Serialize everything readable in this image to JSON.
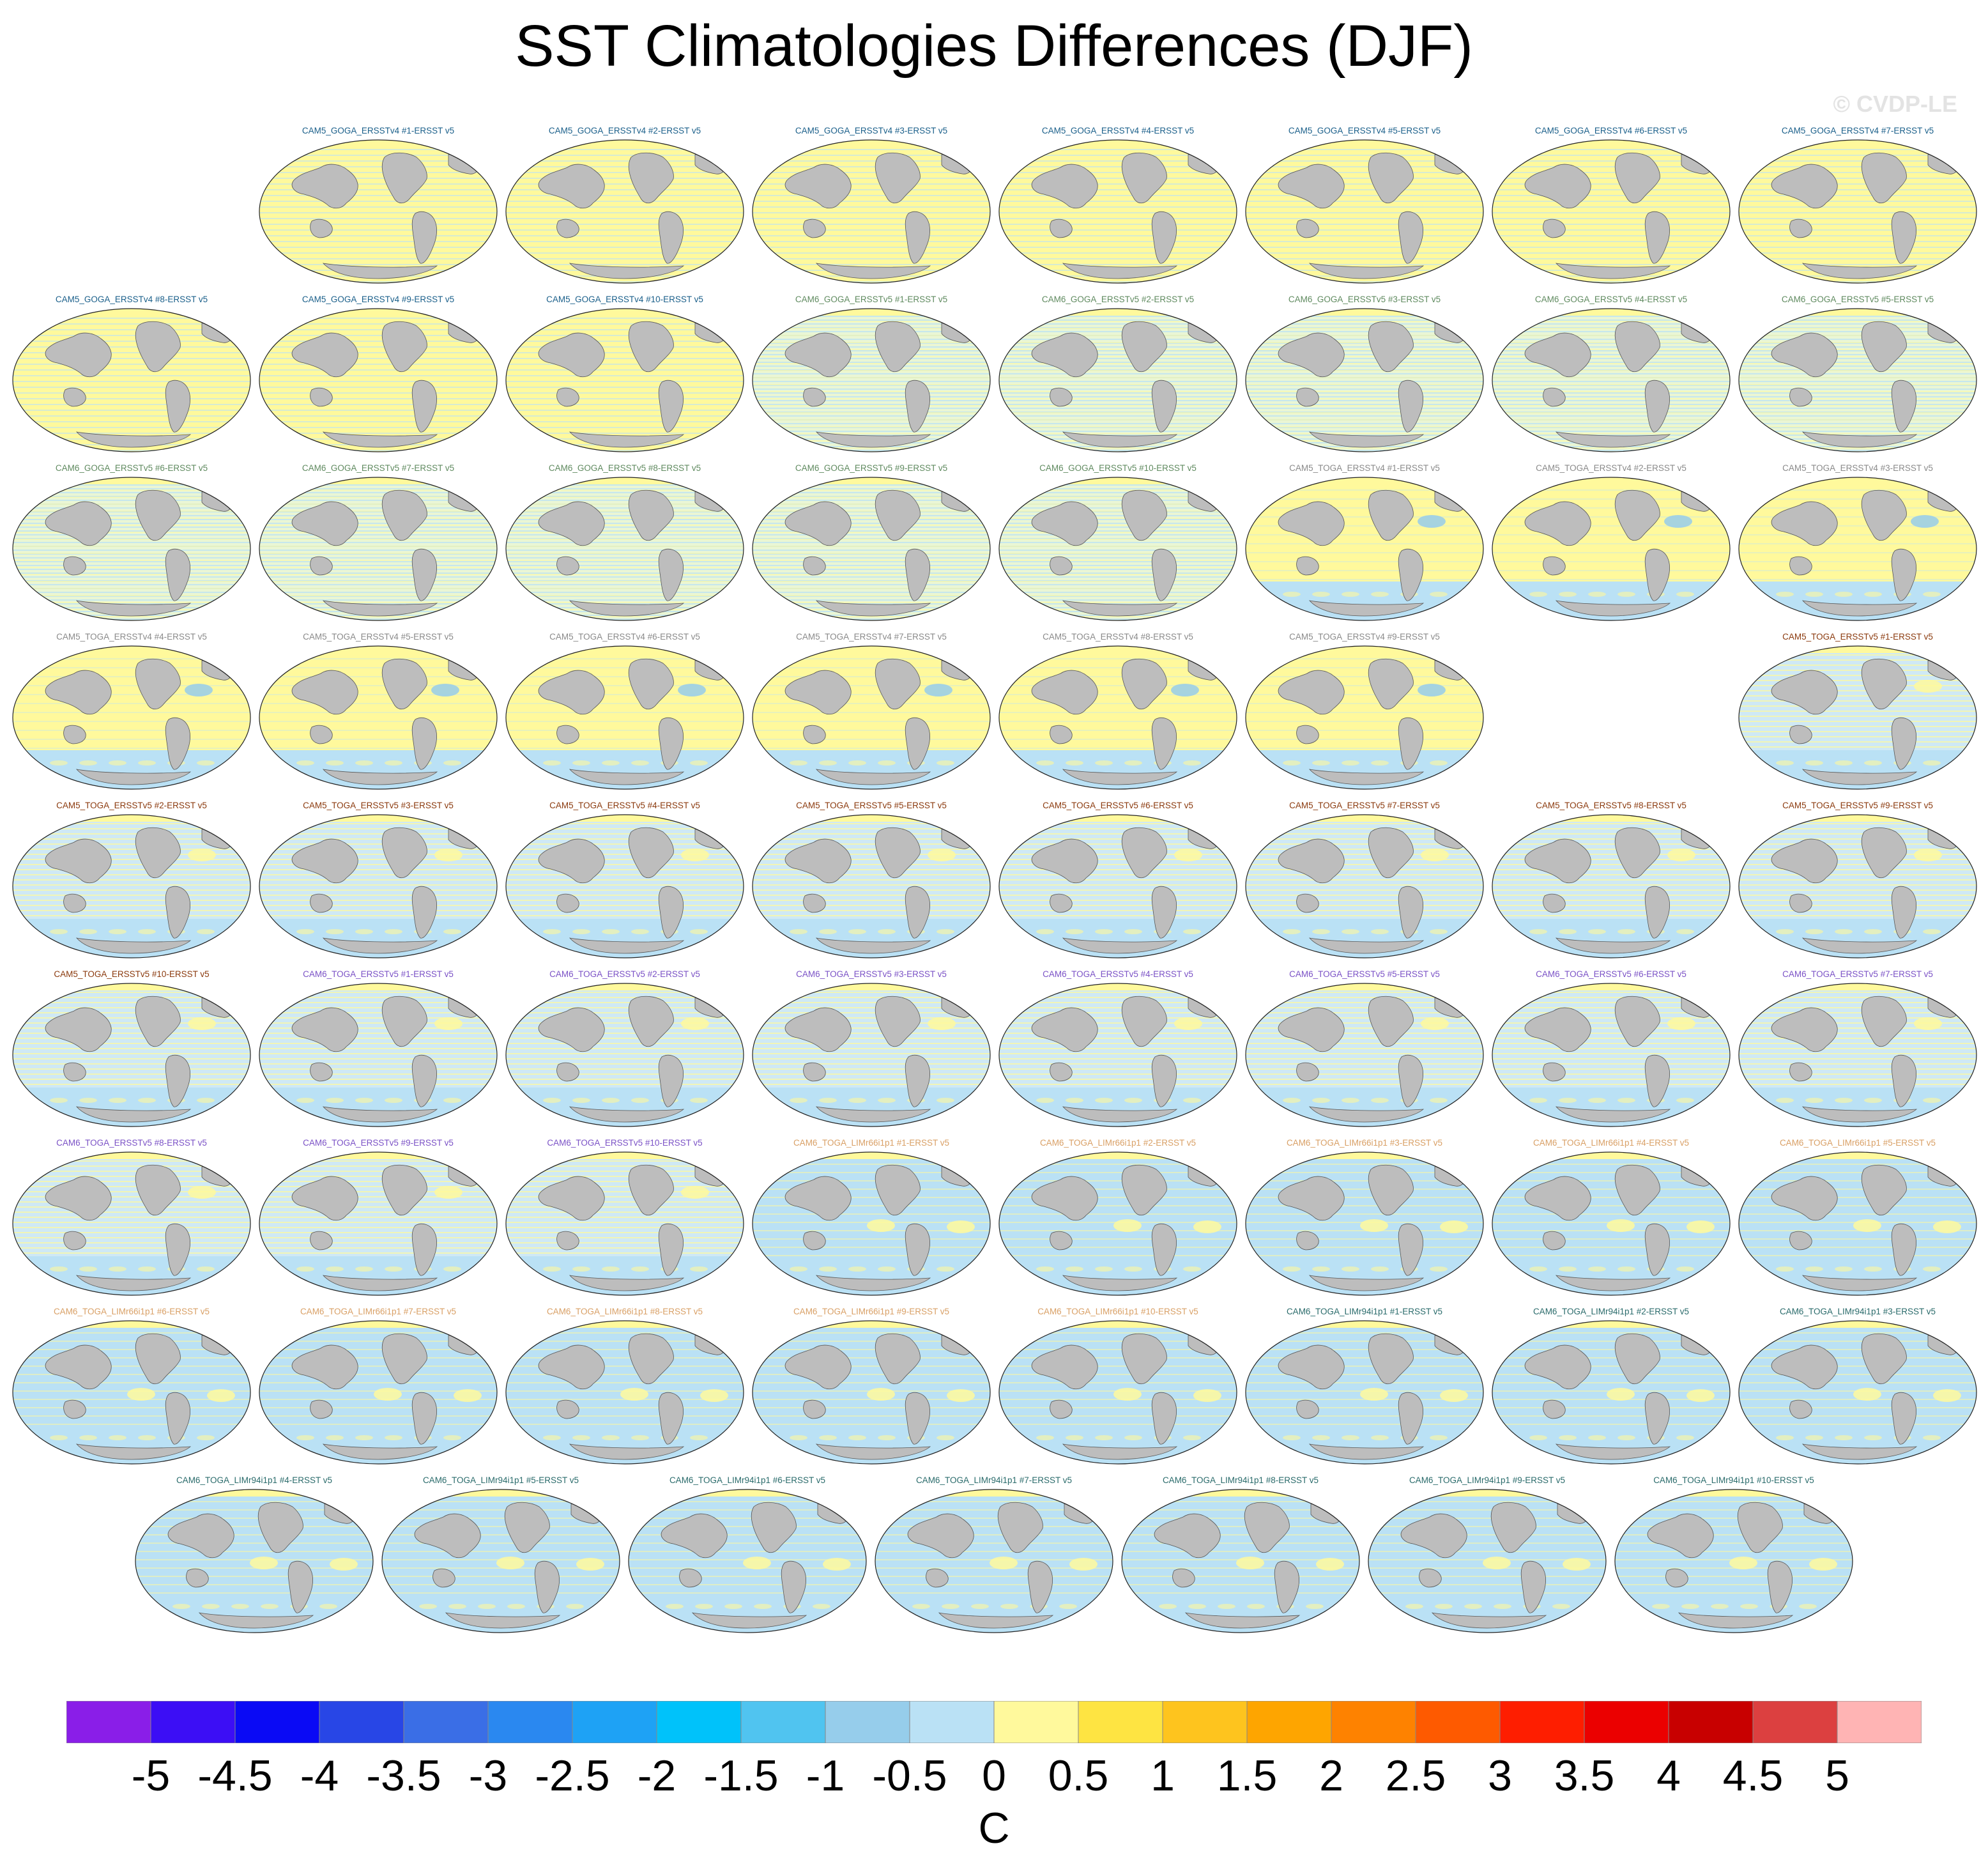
{
  "title": "SST Climatologies Differences (DJF)",
  "watermark": "© CVDP-LE",
  "chart_data": {
    "type": "heatmap",
    "title": "SST Climatologies Differences (DJF)",
    "panel_layout_rows": [
      7,
      8,
      8,
      7,
      8,
      8,
      8,
      8,
      7
    ],
    "panels": [
      {
        "label": "CAM5_GOGA_ERSSTv4 #1-ERSST v5",
        "row": 0,
        "col": 1,
        "label_color": "#1a5f8a",
        "pattern": "warm"
      },
      {
        "label": "CAM5_GOGA_ERSSTv4 #2-ERSST v5",
        "row": 0,
        "col": 2,
        "label_color": "#1a5f8a",
        "pattern": "warm"
      },
      {
        "label": "CAM5_GOGA_ERSSTv4 #3-ERSST v5",
        "row": 0,
        "col": 3,
        "label_color": "#1a5f8a",
        "pattern": "warm"
      },
      {
        "label": "CAM5_GOGA_ERSSTv4 #4-ERSST v5",
        "row": 0,
        "col": 4,
        "label_color": "#1a5f8a",
        "pattern": "warm"
      },
      {
        "label": "CAM5_GOGA_ERSSTv4 #5-ERSST v5",
        "row": 0,
        "col": 5,
        "label_color": "#1a5f8a",
        "pattern": "warm"
      },
      {
        "label": "CAM5_GOGA_ERSSTv4 #6-ERSST v5",
        "row": 0,
        "col": 6,
        "label_color": "#1a5f8a",
        "pattern": "warm"
      },
      {
        "label": "CAM5_GOGA_ERSSTv4 #7-ERSST v5",
        "row": 0,
        "col": 7,
        "label_color": "#1a5f8a",
        "pattern": "warm"
      },
      {
        "label": "CAM5_GOGA_ERSSTv4 #8-ERSST v5",
        "row": 1,
        "col": 0,
        "label_color": "#1a5f8a",
        "pattern": "warm"
      },
      {
        "label": "CAM5_GOGA_ERSSTv4 #9-ERSST v5",
        "row": 1,
        "col": 1,
        "label_color": "#1a5f8a",
        "pattern": "warm"
      },
      {
        "label": "CAM5_GOGA_ERSSTv4 #10-ERSST v5",
        "row": 1,
        "col": 2,
        "label_color": "#1a5f8a",
        "pattern": "warm"
      },
      {
        "label": "CAM6_GOGA_ERSSTv5 #1-ERSST v5",
        "row": 1,
        "col": 3,
        "label_color": "#5f8a5f",
        "pattern": "mixed"
      },
      {
        "label": "CAM6_GOGA_ERSSTv5 #2-ERSST v5",
        "row": 1,
        "col": 4,
        "label_color": "#5f8a5f",
        "pattern": "mixed"
      },
      {
        "label": "CAM6_GOGA_ERSSTv5 #3-ERSST v5",
        "row": 1,
        "col": 5,
        "label_color": "#5f8a5f",
        "pattern": "mixed"
      },
      {
        "label": "CAM6_GOGA_ERSSTv5 #4-ERSST v5",
        "row": 1,
        "col": 6,
        "label_color": "#5f8a5f",
        "pattern": "mixed"
      },
      {
        "label": "CAM6_GOGA_ERSSTv5 #5-ERSST v5",
        "row": 1,
        "col": 7,
        "label_color": "#5f8a5f",
        "pattern": "mixed"
      },
      {
        "label": "CAM6_GOGA_ERSSTv5 #6-ERSST v5",
        "row": 2,
        "col": 0,
        "label_color": "#5f8a5f",
        "pattern": "mixed"
      },
      {
        "label": "CAM6_GOGA_ERSSTv5 #7-ERSST v5",
        "row": 2,
        "col": 1,
        "label_color": "#5f8a5f",
        "pattern": "mixed"
      },
      {
        "label": "CAM6_GOGA_ERSSTv5 #8-ERSST v5",
        "row": 2,
        "col": 2,
        "label_color": "#5f8a5f",
        "pattern": "mixed"
      },
      {
        "label": "CAM6_GOGA_ERSSTv5 #9-ERSST v5",
        "row": 2,
        "col": 3,
        "label_color": "#5f8a5f",
        "pattern": "mixed"
      },
      {
        "label": "CAM6_GOGA_ERSSTv5 #10-ERSST v5",
        "row": 2,
        "col": 4,
        "label_color": "#5f8a5f",
        "pattern": "mixed"
      },
      {
        "label": "CAM5_TOGA_ERSSTv4 #1-ERSST v5",
        "row": 2,
        "col": 5,
        "label_color": "#8a8a8a",
        "pattern": "toga4"
      },
      {
        "label": "CAM5_TOGA_ERSSTv4 #2-ERSST v5",
        "row": 2,
        "col": 6,
        "label_color": "#8a8a8a",
        "pattern": "toga4"
      },
      {
        "label": "CAM5_TOGA_ERSSTv4 #3-ERSST v5",
        "row": 2,
        "col": 7,
        "label_color": "#8a8a8a",
        "pattern": "toga4"
      },
      {
        "label": "CAM5_TOGA_ERSSTv4 #4-ERSST v5",
        "row": 3,
        "col": 0,
        "label_color": "#8a8a8a",
        "pattern": "toga4"
      },
      {
        "label": "CAM5_TOGA_ERSSTv4 #5-ERSST v5",
        "row": 3,
        "col": 1,
        "label_color": "#8a8a8a",
        "pattern": "toga4"
      },
      {
        "label": "CAM5_TOGA_ERSSTv4 #6-ERSST v5",
        "row": 3,
        "col": 2,
        "label_color": "#8a8a8a",
        "pattern": "toga4"
      },
      {
        "label": "CAM5_TOGA_ERSSTv4 #7-ERSST v5",
        "row": 3,
        "col": 3,
        "label_color": "#8a8a8a",
        "pattern": "toga4"
      },
      {
        "label": "CAM5_TOGA_ERSSTv4 #8-ERSST v5",
        "row": 3,
        "col": 4,
        "label_color": "#8a8a8a",
        "pattern": "toga4"
      },
      {
        "label": "CAM5_TOGA_ERSSTv4 #9-ERSST v5",
        "row": 3,
        "col": 5,
        "label_color": "#8a8a8a",
        "pattern": "toga4"
      },
      {
        "label": "CAM5_TOGA_ERSSTv5 #1-ERSST v5",
        "row": 3,
        "col": 7,
        "label_color": "#8b3a0e",
        "pattern": "cool"
      },
      {
        "label": "CAM5_TOGA_ERSSTv5 #2-ERSST v5",
        "row": 4,
        "col": 0,
        "label_color": "#8b3a0e",
        "pattern": "cool"
      },
      {
        "label": "CAM5_TOGA_ERSSTv5 #3-ERSST v5",
        "row": 4,
        "col": 1,
        "label_color": "#8b3a0e",
        "pattern": "cool"
      },
      {
        "label": "CAM5_TOGA_ERSSTv5 #4-ERSST v5",
        "row": 4,
        "col": 2,
        "label_color": "#8b3a0e",
        "pattern": "cool"
      },
      {
        "label": "CAM5_TOGA_ERSSTv5 #5-ERSST v5",
        "row": 4,
        "col": 3,
        "label_color": "#8b3a0e",
        "pattern": "cool"
      },
      {
        "label": "CAM5_TOGA_ERSSTv5 #6-ERSST v5",
        "row": 4,
        "col": 4,
        "label_color": "#8b3a0e",
        "pattern": "cool"
      },
      {
        "label": "CAM5_TOGA_ERSSTv5 #7-ERSST v5",
        "row": 4,
        "col": 5,
        "label_color": "#8b3a0e",
        "pattern": "cool"
      },
      {
        "label": "CAM5_TOGA_ERSSTv5 #8-ERSST v5",
        "row": 4,
        "col": 6,
        "label_color": "#8b3a0e",
        "pattern": "cool"
      },
      {
        "label": "CAM5_TOGA_ERSSTv5 #9-ERSST v5",
        "row": 4,
        "col": 7,
        "label_color": "#8b3a0e",
        "pattern": "cool"
      },
      {
        "label": "CAM5_TOGA_ERSSTv5 #10-ERSST v5",
        "row": 5,
        "col": 0,
        "label_color": "#8b3a0e",
        "pattern": "cool"
      },
      {
        "label": "CAM6_TOGA_ERSSTv5 #1-ERSST v5",
        "row": 5,
        "col": 1,
        "label_color": "#7b52c6",
        "pattern": "cool"
      },
      {
        "label": "CAM6_TOGA_ERSSTv5 #2-ERSST v5",
        "row": 5,
        "col": 2,
        "label_color": "#7b52c6",
        "pattern": "cool"
      },
      {
        "label": "CAM6_TOGA_ERSSTv5 #3-ERSST v5",
        "row": 5,
        "col": 3,
        "label_color": "#7b52c6",
        "pattern": "cool"
      },
      {
        "label": "CAM6_TOGA_ERSSTv5 #4-ERSST v5",
        "row": 5,
        "col": 4,
        "label_color": "#7b52c6",
        "pattern": "cool"
      },
      {
        "label": "CAM6_TOGA_ERSSTv5 #5-ERSST v5",
        "row": 5,
        "col": 5,
        "label_color": "#7b52c6",
        "pattern": "cool"
      },
      {
        "label": "CAM6_TOGA_ERSSTv5 #6-ERSST v5",
        "row": 5,
        "col": 6,
        "label_color": "#7b52c6",
        "pattern": "cool"
      },
      {
        "label": "CAM6_TOGA_ERSSTv5 #7-ERSST v5",
        "row": 5,
        "col": 7,
        "label_color": "#7b52c6",
        "pattern": "cool"
      },
      {
        "label": "CAM6_TOGA_ERSSTv5 #8-ERSST v5",
        "row": 6,
        "col": 0,
        "label_color": "#7b52c6",
        "pattern": "cool"
      },
      {
        "label": "CAM6_TOGA_ERSSTv5 #9-ERSST v5",
        "row": 6,
        "col": 1,
        "label_color": "#7b52c6",
        "pattern": "cool"
      },
      {
        "label": "CAM6_TOGA_ERSSTv5 #10-ERSST v5",
        "row": 6,
        "col": 2,
        "label_color": "#7b52c6",
        "pattern": "cool"
      },
      {
        "label": "CAM6_TOGA_LIMr66i1p1 #1-ERSST v5",
        "row": 6,
        "col": 3,
        "label_color": "#d9a066",
        "pattern": "lim"
      },
      {
        "label": "CAM6_TOGA_LIMr66i1p1 #2-ERSST v5",
        "row": 6,
        "col": 4,
        "label_color": "#d9a066",
        "pattern": "lim"
      },
      {
        "label": "CAM6_TOGA_LIMr66i1p1 #3-ERSST v5",
        "row": 6,
        "col": 5,
        "label_color": "#d9a066",
        "pattern": "lim"
      },
      {
        "label": "CAM6_TOGA_LIMr66i1p1 #4-ERSST v5",
        "row": 6,
        "col": 6,
        "label_color": "#d9a066",
        "pattern": "lim"
      },
      {
        "label": "CAM6_TOGA_LIMr66i1p1 #5-ERSST v5",
        "row": 6,
        "col": 7,
        "label_color": "#d9a066",
        "pattern": "lim"
      },
      {
        "label": "CAM6_TOGA_LIMr66i1p1 #6-ERSST v5",
        "row": 7,
        "col": 0,
        "label_color": "#d9a066",
        "pattern": "lim"
      },
      {
        "label": "CAM6_TOGA_LIMr66i1p1 #7-ERSST v5",
        "row": 7,
        "col": 1,
        "label_color": "#d9a066",
        "pattern": "lim"
      },
      {
        "label": "CAM6_TOGA_LIMr66i1p1 #8-ERSST v5",
        "row": 7,
        "col": 2,
        "label_color": "#d9a066",
        "pattern": "lim"
      },
      {
        "label": "CAM6_TOGA_LIMr66i1p1 #9-ERSST v5",
        "row": 7,
        "col": 3,
        "label_color": "#d9a066",
        "pattern": "lim"
      },
      {
        "label": "CAM6_TOGA_LIMr66i1p1 #10-ERSST v5",
        "row": 7,
        "col": 4,
        "label_color": "#d9a066",
        "pattern": "lim"
      },
      {
        "label": "CAM6_TOGA_LIMr94i1p1 #1-ERSST v5",
        "row": 7,
        "col": 5,
        "label_color": "#2a6b6b",
        "pattern": "lim"
      },
      {
        "label": "CAM6_TOGA_LIMr94i1p1 #2-ERSST v5",
        "row": 7,
        "col": 6,
        "label_color": "#2a6b6b",
        "pattern": "lim"
      },
      {
        "label": "CAM6_TOGA_LIMr94i1p1 #3-ERSST v5",
        "row": 7,
        "col": 7,
        "label_color": "#2a6b6b",
        "pattern": "lim"
      },
      {
        "label": "CAM6_TOGA_LIMr94i1p1 #4-ERSST v5",
        "row": 8,
        "col": 0,
        "label_color": "#2a6b6b",
        "pattern": "lim"
      },
      {
        "label": "CAM6_TOGA_LIMr94i1p1 #5-ERSST v5",
        "row": 8,
        "col": 1,
        "label_color": "#2a6b6b",
        "pattern": "lim"
      },
      {
        "label": "CAM6_TOGA_LIMr94i1p1 #6-ERSST v5",
        "row": 8,
        "col": 2,
        "label_color": "#2a6b6b",
        "pattern": "lim"
      },
      {
        "label": "CAM6_TOGA_LIMr94i1p1 #7-ERSST v5",
        "row": 8,
        "col": 3,
        "label_color": "#2a6b6b",
        "pattern": "lim"
      },
      {
        "label": "CAM6_TOGA_LIMr94i1p1 #8-ERSST v5",
        "row": 8,
        "col": 4,
        "label_color": "#2a6b6b",
        "pattern": "lim"
      },
      {
        "label": "CAM6_TOGA_LIMr94i1p1 #9-ERSST v5",
        "row": 8,
        "col": 5,
        "label_color": "#2a6b6b",
        "pattern": "lim"
      },
      {
        "label": "CAM6_TOGA_LIMr94i1p1 #10-ERSST v5",
        "row": 8,
        "col": 6,
        "label_color": "#2a6b6b",
        "pattern": "lim"
      }
    ],
    "colorbar": {
      "units": "C",
      "min": -5.5,
      "max": 5.5,
      "tick_labels": [
        "-5",
        "-4.5",
        "-4",
        "-3.5",
        "-3",
        "-2.5",
        "-2",
        "-1.5",
        "-1",
        "-0.5",
        "0",
        "0.5",
        "1",
        "1.5",
        "2",
        "2.5",
        "3",
        "3.5",
        "4",
        "4.5",
        "5"
      ],
      "colors": [
        "#8a1ee8",
        "#3c0ef5",
        "#0a0af5",
        "#2846e6",
        "#3a6ee6",
        "#2a88f0",
        "#1ea2f5",
        "#00c2fa",
        "#50c4f0",
        "#96cdeb",
        "#bae1f5",
        "#fff99c",
        "#fee442",
        "#fec41e",
        "#fea500",
        "#fe8200",
        "#fe5a00",
        "#fe1e00",
        "#eb0000",
        "#c80000",
        "#dc4040",
        "#ffb4b4"
      ]
    }
  }
}
